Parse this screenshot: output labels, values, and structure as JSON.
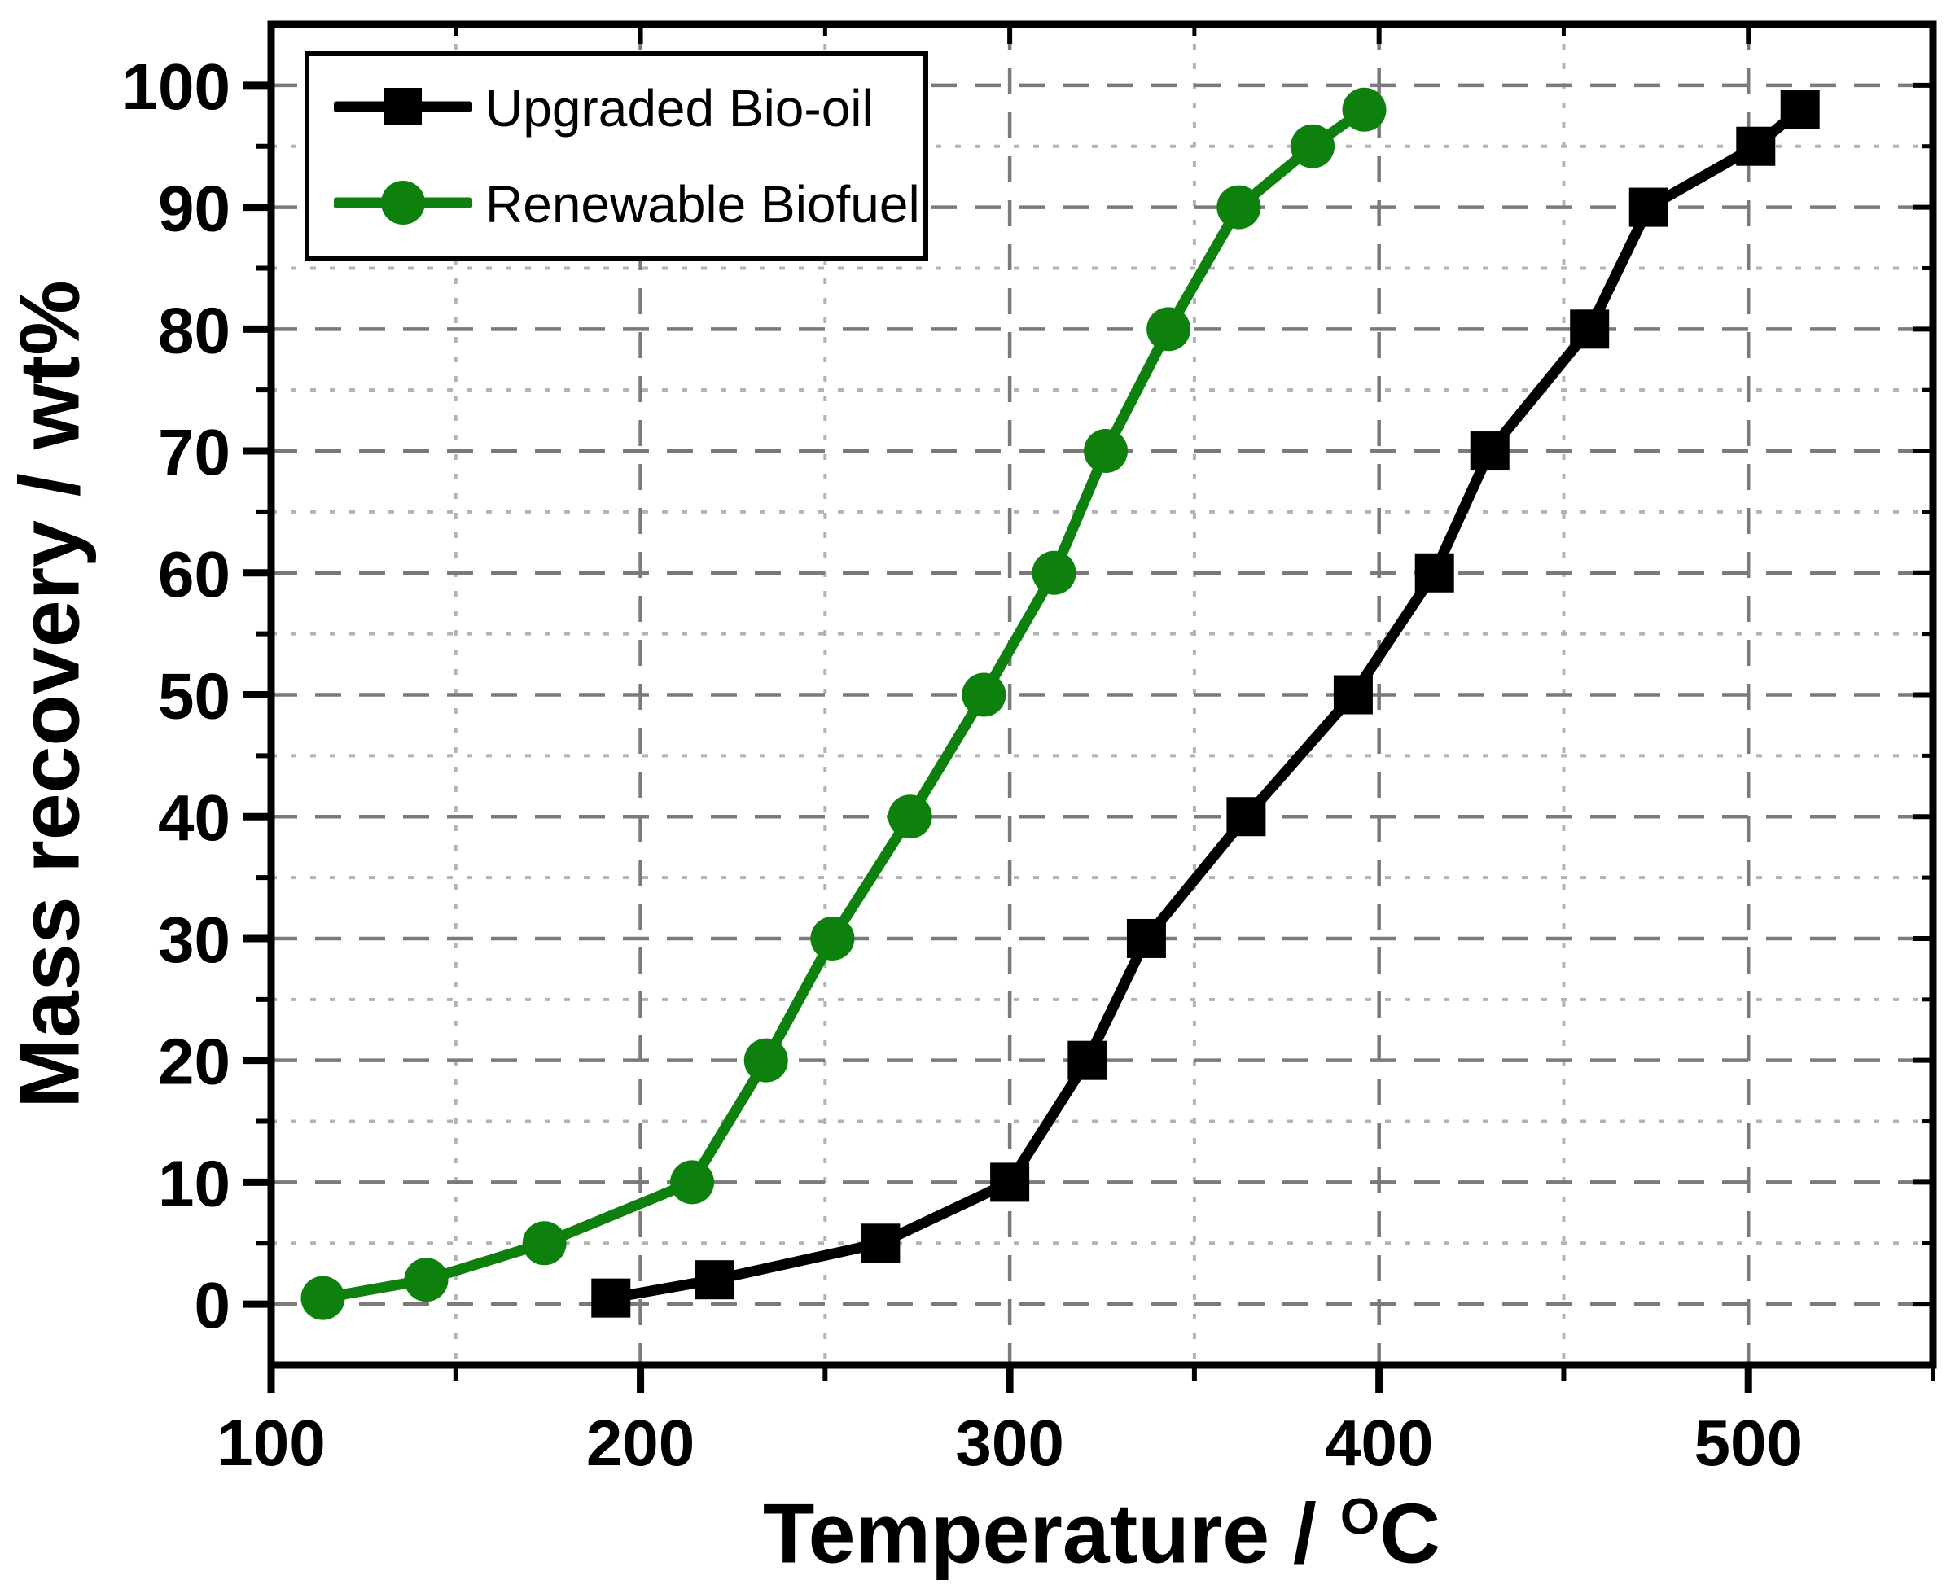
{
  "chart_data": {
    "type": "line",
    "title": "",
    "xlabel": "Temperature / °C",
    "xlabel_parts": {
      "main": "Temperature / ",
      "sup": "O",
      "unit": "C"
    },
    "ylabel": "Mass recovery / wt%",
    "xlim": [
      100,
      550
    ],
    "ylim": [
      -5,
      105
    ],
    "x_ticks": [
      100,
      200,
      300,
      400,
      500
    ],
    "x_minor_ticks": [
      150,
      250,
      350,
      450,
      550
    ],
    "y_ticks": [
      0,
      10,
      20,
      30,
      40,
      50,
      60,
      70,
      80,
      90,
      100
    ],
    "y_minor_ticks": [
      5,
      15,
      25,
      35,
      45,
      55,
      65,
      75,
      85,
      95
    ],
    "grid": true,
    "legend_position": "top-left",
    "colors": {
      "grid_major": "#7a7a7a",
      "grid_minor": "#b3b3b3",
      "axis": "#000000"
    },
    "series": [
      {
        "name": "Upgraded Bio-oil",
        "color": "#000000",
        "marker": "square",
        "points": [
          [
            192,
            0.5
          ],
          [
            220,
            2
          ],
          [
            265,
            5
          ],
          [
            300,
            10
          ],
          [
            321,
            20
          ],
          [
            337,
            30
          ],
          [
            364,
            40
          ],
          [
            393,
            50
          ],
          [
            415,
            60
          ],
          [
            430,
            70
          ],
          [
            457,
            80
          ],
          [
            473,
            90
          ],
          [
            502,
            95
          ],
          [
            514,
            98
          ]
        ]
      },
      {
        "name": "Renewable Biofuel",
        "color": "#0d800d",
        "marker": "circle",
        "points": [
          [
            114,
            0.5
          ],
          [
            142,
            2
          ],
          [
            174,
            5
          ],
          [
            214,
            10
          ],
          [
            234,
            20
          ],
          [
            252,
            30
          ],
          [
            273,
            40
          ],
          [
            293,
            50
          ],
          [
            312,
            60
          ],
          [
            326,
            70
          ],
          [
            343,
            80
          ],
          [
            362,
            90
          ],
          [
            382,
            95
          ],
          [
            396,
            98
          ]
        ]
      }
    ]
  },
  "legend": {
    "items": [
      {
        "label": "Upgraded Bio-oil"
      },
      {
        "label": "Renewable Biofuel"
      }
    ]
  }
}
